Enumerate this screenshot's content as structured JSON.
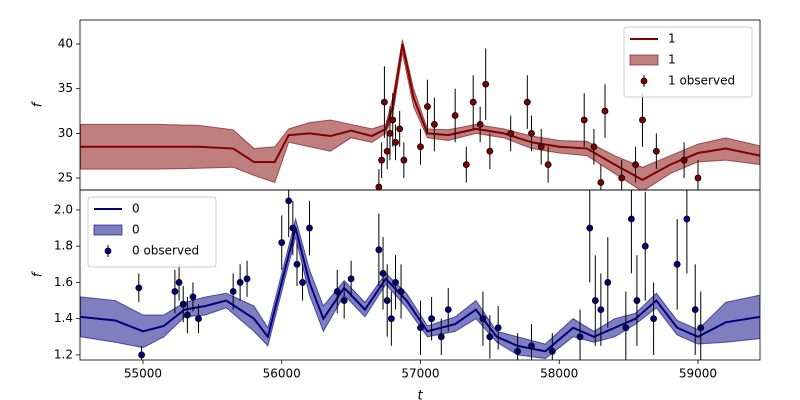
{
  "chart_data": [
    {
      "type": "line",
      "ylabel": "f",
      "legend": "upper right",
      "xlim": [
        54546,
        59447
      ],
      "ylim": [
        23.66,
        42.69
      ],
      "yticks": [
        25,
        30,
        35,
        40
      ],
      "x": [
        54550,
        54800,
        55100,
        55400,
        55650,
        55800,
        55950,
        56050,
        56200,
        56350,
        56500,
        56650,
        56750,
        56800,
        56870,
        56950,
        57050,
        57200,
        57400,
        57600,
        57800,
        58000,
        58200,
        58400,
        58600,
        58800,
        59000,
        59200,
        59447
      ],
      "series": [
        {
          "name": "1",
          "color": "#800000",
          "values": [
            28.5,
            28.5,
            28.5,
            28.5,
            28.3,
            26.8,
            26.8,
            29.8,
            30,
            29.7,
            30.3,
            29.7,
            30.5,
            33,
            40,
            34,
            30,
            29.8,
            30.5,
            30,
            29,
            28.5,
            28.3,
            26.5,
            24.8,
            26.5,
            27.8,
            28.3,
            27.5
          ]
        }
      ],
      "band": {
        "name": "1",
        "color": "#800000",
        "lower": [
          26,
          26,
          26,
          26.1,
          26.2,
          25.3,
          24.5,
          29,
          28.5,
          28,
          29.5,
          29,
          30,
          32,
          39,
          33,
          29.5,
          29.2,
          30,
          29.5,
          28.3,
          27.8,
          27.5,
          25.5,
          23.5,
          25.5,
          26.8,
          27,
          26.5
        ],
        "upper": [
          31,
          31,
          31,
          30.9,
          30.4,
          28.3,
          28.5,
          30.5,
          31.2,
          31.5,
          31,
          30.5,
          31,
          34,
          40.5,
          35,
          30.5,
          30.4,
          31,
          30.5,
          29.7,
          29.2,
          29.1,
          27.5,
          26.2,
          27.5,
          28.8,
          29.5,
          28.6
        ]
      },
      "observed": {
        "name": "1 observed",
        "color": "#800000",
        "x": [
          56700,
          56720,
          56740,
          56760,
          56780,
          56800,
          56820,
          56850,
          56880,
          57000,
          57050,
          57100,
          57250,
          57330,
          57380,
          57430,
          57470,
          57500,
          57650,
          57770,
          57800,
          57870,
          57920,
          58180,
          58250,
          58300,
          58330,
          58450,
          58550,
          58600,
          58700,
          58900,
          59000
        ],
        "values": [
          24,
          27,
          33.5,
          28,
          30,
          31.5,
          29,
          30.5,
          27,
          28.5,
          33,
          31,
          32,
          26.5,
          33.5,
          31,
          35.5,
          28,
          30,
          33.5,
          30,
          28.5,
          26.5,
          31.5,
          28.5,
          24.5,
          32.5,
          25,
          26.5,
          31.5,
          28,
          27,
          25
        ],
        "errors": [
          2,
          2,
          4,
          2,
          3,
          3,
          2,
          2,
          2,
          2,
          3,
          3,
          3,
          2,
          3,
          2,
          4,
          2,
          2,
          3,
          2,
          2,
          2,
          3,
          2,
          2,
          3,
          2,
          2,
          3,
          2,
          2,
          2
        ]
      }
    },
    {
      "type": "line",
      "ylabel": "f",
      "xlabel": "t",
      "legend": "upper left",
      "xlim": [
        54546,
        59447
      ],
      "ylim": [
        1.172,
        2.11
      ],
      "yticks": [
        1.2,
        1.4,
        1.6,
        1.8,
        {
          "value": 2,
          "label": "2.0"
        }
      ],
      "xticks": [
        55000,
        56000,
        57000,
        58000,
        59000
      ],
      "x": [
        54550,
        54800,
        55000,
        55150,
        55300,
        55450,
        55600,
        55800,
        55900,
        56000,
        56100,
        56200,
        56300,
        56450,
        56600,
        56750,
        56900,
        57050,
        57250,
        57400,
        57550,
        57700,
        57900,
        58100,
        58250,
        58400,
        58550,
        58700,
        58850,
        59000,
        59200,
        59447
      ],
      "series": [
        {
          "name": "0",
          "color": "#000080",
          "values": [
            1.41,
            1.39,
            1.33,
            1.36,
            1.45,
            1.47,
            1.5,
            1.4,
            1.3,
            1.6,
            1.9,
            1.6,
            1.4,
            1.57,
            1.45,
            1.62,
            1.5,
            1.33,
            1.37,
            1.45,
            1.3,
            1.25,
            1.22,
            1.35,
            1.3,
            1.35,
            1.4,
            1.5,
            1.35,
            1.3,
            1.38,
            1.41
          ]
        }
      ],
      "band": {
        "name": "0",
        "color": "#000080",
        "lower": [
          1.3,
          1.27,
          1.24,
          1.3,
          1.41,
          1.42,
          1.46,
          1.33,
          1.25,
          1.55,
          1.85,
          1.53,
          1.33,
          1.53,
          1.41,
          1.59,
          1.46,
          1.3,
          1.33,
          1.4,
          1.27,
          1.2,
          1.18,
          1.3,
          1.27,
          1.3,
          1.37,
          1.46,
          1.31,
          1.26,
          1.27,
          1.29
        ],
        "upper": [
          1.52,
          1.5,
          1.42,
          1.42,
          1.49,
          1.52,
          1.54,
          1.47,
          1.35,
          1.65,
          1.95,
          1.67,
          1.47,
          1.61,
          1.49,
          1.65,
          1.54,
          1.36,
          1.41,
          1.5,
          1.33,
          1.3,
          1.26,
          1.4,
          1.33,
          1.4,
          1.43,
          1.54,
          1.39,
          1.34,
          1.49,
          1.53
        ]
      },
      "observed": {
        "name": "0 observed",
        "color": "#000080",
        "x": [
          54970,
          54990,
          55230,
          55260,
          55290,
          55320,
          55360,
          55400,
          55650,
          55700,
          55750,
          56000,
          56050,
          56080,
          56110,
          56150,
          56200,
          56400,
          56450,
          56500,
          56700,
          56730,
          56760,
          56790,
          56820,
          56860,
          57000,
          57080,
          57150,
          57200,
          57450,
          57500,
          57560,
          57700,
          57800,
          57950,
          58150,
          58220,
          58260,
          58300,
          58350,
          58480,
          58520,
          58560,
          58620,
          58680,
          58850,
          58920,
          58980,
          59020
        ],
        "values": [
          1.57,
          1.2,
          1.55,
          1.6,
          1.48,
          1.42,
          1.52,
          1.4,
          1.55,
          1.6,
          1.62,
          1.82,
          2.05,
          1.9,
          1.7,
          1.6,
          1.9,
          1.55,
          1.5,
          1.62,
          1.78,
          1.65,
          1.5,
          1.4,
          1.6,
          1.55,
          1.35,
          1.4,
          1.3,
          1.45,
          1.4,
          1.3,
          1.35,
          1.22,
          1.25,
          1.22,
          1.3,
          1.9,
          1.5,
          1.45,
          1.6,
          1.35,
          1.95,
          1.5,
          1.8,
          1.4,
          1.7,
          1.95,
          1.45,
          1.35
        ],
        "errors": [
          0.08,
          0.05,
          0.12,
          0.1,
          0.1,
          0.1,
          0.08,
          0.08,
          0.1,
          0.1,
          0.1,
          0.15,
          0.2,
          0.15,
          0.12,
          0.1,
          0.15,
          0.12,
          0.1,
          0.1,
          0.2,
          0.2,
          0.2,
          0.15,
          0.15,
          0.15,
          0.15,
          0.12,
          0.1,
          0.12,
          0.15,
          0.12,
          0.12,
          0.1,
          0.12,
          0.1,
          0.15,
          0.3,
          0.25,
          0.2,
          0.25,
          0.2,
          0.3,
          0.25,
          0.3,
          0.2,
          0.25,
          0.3,
          0.25,
          0.2
        ]
      }
    }
  ]
}
